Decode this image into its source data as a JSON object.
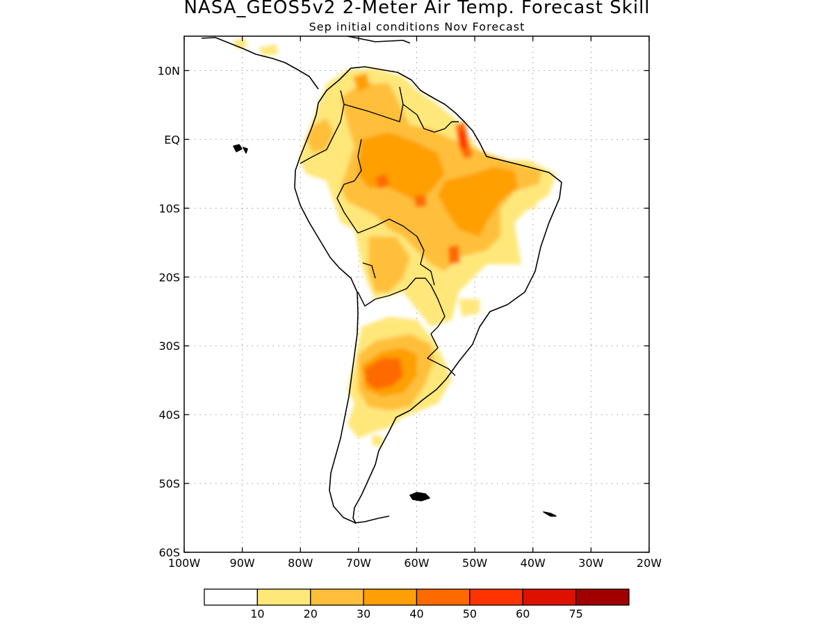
{
  "title": "NASA_GEOS5v2 2-Meter Air Temp. Forecast Skill",
  "subtitle": "Sep initial conditions  Nov Forecast",
  "map": {
    "lon_range": [
      -100,
      -20
    ],
    "lat_range": [
      -60,
      15
    ],
    "lon_ticks": [
      {
        "value": -100,
        "label": "100W"
      },
      {
        "value": -90,
        "label": "90W"
      },
      {
        "value": -80,
        "label": "80W"
      },
      {
        "value": -70,
        "label": "70W"
      },
      {
        "value": -60,
        "label": "60W"
      },
      {
        "value": -50,
        "label": "50W"
      },
      {
        "value": -40,
        "label": "40W"
      },
      {
        "value": -30,
        "label": "30W"
      },
      {
        "value": -20,
        "label": "20W"
      }
    ],
    "lat_ticks": [
      {
        "value": 10,
        "label": "10N"
      },
      {
        "value": 0,
        "label": "EQ"
      },
      {
        "value": -10,
        "label": "10S"
      },
      {
        "value": -20,
        "label": "20S"
      },
      {
        "value": -30,
        "label": "30S"
      },
      {
        "value": -40,
        "label": "40S"
      },
      {
        "value": -50,
        "label": "50S"
      },
      {
        "value": -60,
        "label": "60S"
      }
    ],
    "grid": true
  },
  "colorbar": {
    "colors": [
      "#ffffff",
      "#ffe77a",
      "#ffbf3a",
      "#ff9f06",
      "#ff6a00",
      "#ff3300",
      "#dd1100",
      "#a00000"
    ],
    "labels": [
      "10",
      "20",
      "30",
      "40",
      "50",
      "60",
      "75"
    ]
  }
}
